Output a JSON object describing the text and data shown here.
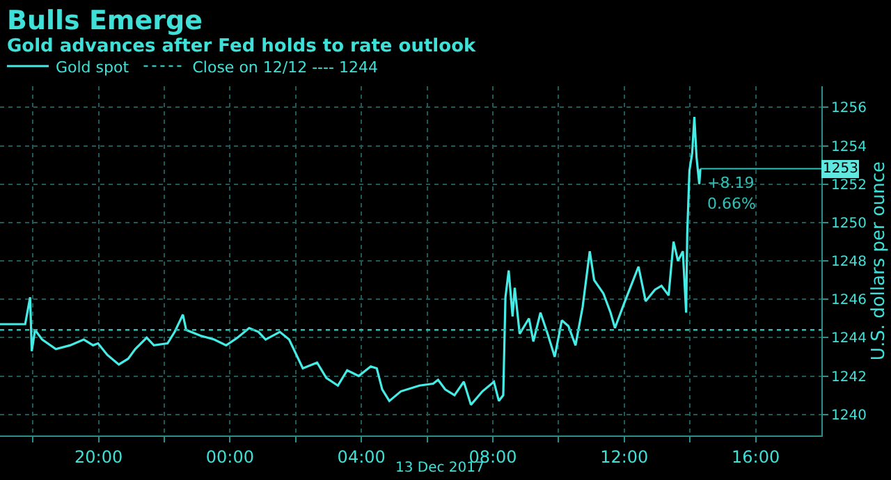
{
  "chart_data": {
    "type": "line",
    "title": "Bulls Emerge",
    "subtitle": "Gold advances after Fed holds to rate outlook",
    "ylabel": "U.S. dollars per ounce",
    "x": [
      "2017-12-12T17:00",
      "2017-12-12T17:46",
      "2017-12-12T17:55",
      "2017-12-12T17:58",
      "2017-12-12T18:04",
      "2017-12-12T18:17",
      "2017-12-12T18:42",
      "2017-12-12T19:08",
      "2017-12-12T19:33",
      "2017-12-12T19:50",
      "2017-12-12T19:59",
      "2017-12-12T20:16",
      "2017-12-12T20:37",
      "2017-12-12T20:54",
      "2017-12-12T21:07",
      "2017-12-12T21:28",
      "2017-12-12T21:41",
      "2017-12-12T22:06",
      "2017-12-12T22:19",
      "2017-12-12T22:34",
      "2017-12-12T22:40",
      "2017-12-12T23:06",
      "2017-12-12T23:31",
      "2017-12-12T23:53",
      "2017-12-13T00:14",
      "2017-12-13T00:35",
      "2017-12-13T00:52",
      "2017-12-13T01:05",
      "2017-12-13T01:31",
      "2017-12-13T01:48",
      "2017-12-13T02:13",
      "2017-12-13T02:39",
      "2017-12-13T02:56",
      "2017-12-13T03:17",
      "2017-12-13T03:34",
      "2017-12-13T03:55",
      "2017-12-13T04:17",
      "2017-12-13T04:28",
      "2017-12-13T04:38",
      "2017-12-13T04:51",
      "2017-12-13T05:12",
      "2017-12-13T05:46",
      "2017-12-13T06:11",
      "2017-12-13T06:20",
      "2017-12-13T06:33",
      "2017-12-13T06:50",
      "2017-12-13T07:07",
      "2017-12-13T07:20",
      "2017-12-13T07:41",
      "2017-12-13T08:02",
      "2017-12-13T08:11",
      "2017-12-13T08:19",
      "2017-12-13T08:23",
      "2017-12-13T08:29",
      "2017-12-13T08:36",
      "2017-12-13T08:40",
      "2017-12-13T08:49",
      "2017-12-13T09:06",
      "2017-12-13T09:14",
      "2017-12-13T09:27",
      "2017-12-13T09:40",
      "2017-12-13T09:53",
      "2017-12-13T10:06",
      "2017-12-13T10:18",
      "2017-12-13T10:31",
      "2017-12-13T10:44",
      "2017-12-13T10:57",
      "2017-12-13T11:05",
      "2017-12-13T11:22",
      "2017-12-13T11:35",
      "2017-12-13T11:43",
      "2017-12-13T12:00",
      "2017-12-13T12:26",
      "2017-12-13T12:39",
      "2017-12-13T12:56",
      "2017-12-13T13:08",
      "2017-12-13T13:21",
      "2017-12-13T13:30",
      "2017-12-13T13:38",
      "2017-12-13T13:47",
      "2017-12-13T13:53",
      "2017-12-13T13:55",
      "2017-12-13T13:59",
      "2017-12-13T14:04",
      "2017-12-13T14:08",
      "2017-12-13T14:12",
      "2017-12-13T14:17",
      "2017-12-13T14:19"
    ],
    "series": [
      {
        "name": "Gold spot",
        "color": "#45ece6",
        "values": [
          1244.7,
          1244.7,
          1246.1,
          1243.3,
          1244.4,
          1243.9,
          1243.4,
          1243.6,
          1243.9,
          1243.6,
          1243.7,
          1243.1,
          1242.6,
          1242.9,
          1243.4,
          1244.0,
          1243.6,
          1243.7,
          1244.3,
          1245.2,
          1244.4,
          1244.1,
          1243.9,
          1243.6,
          1244.0,
          1244.5,
          1244.3,
          1243.9,
          1244.3,
          1243.9,
          1242.4,
          1242.7,
          1241.9,
          1241.5,
          1242.3,
          1242.0,
          1242.5,
          1242.4,
          1241.3,
          1240.7,
          1241.2,
          1241.5,
          1241.6,
          1241.8,
          1241.3,
          1241.0,
          1241.7,
          1240.5,
          1241.2,
          1241.7,
          1240.7,
          1241.0,
          1246.1,
          1247.5,
          1245.1,
          1246.6,
          1244.2,
          1245.0,
          1243.8,
          1245.3,
          1244.2,
          1243.0,
          1244.9,
          1244.6,
          1243.6,
          1245.6,
          1248.5,
          1247.0,
          1246.3,
          1245.3,
          1244.5,
          1245.8,
          1247.7,
          1245.9,
          1246.5,
          1246.7,
          1246.2,
          1249.0,
          1248.0,
          1248.5,
          1245.3,
          1249.4,
          1252.7,
          1253.6,
          1255.5,
          1253.4,
          1252.0,
          1252.8
        ]
      }
    ],
    "xlim": [
      "2017-12-12T17:00",
      "2017-12-13T18:00"
    ],
    "xticks": [
      {
        "value": "2017-12-12T18:00",
        "label": null
      },
      {
        "value": "2017-12-12T20:00",
        "label": "20:00"
      },
      {
        "value": "2017-12-12T22:00",
        "label": null
      },
      {
        "value": "2017-12-13T00:00",
        "label": "00:00"
      },
      {
        "value": "2017-12-13T02:00",
        "label": null
      },
      {
        "value": "2017-12-13T04:00",
        "label": "04:00"
      },
      {
        "value": "2017-12-13T06:00",
        "label": null
      },
      {
        "value": "2017-12-13T08:00",
        "label": "08:00"
      },
      {
        "value": "2017-12-13T10:00",
        "label": null
      },
      {
        "value": "2017-12-13T12:00",
        "label": "12:00"
      },
      {
        "value": "2017-12-13T14:00",
        "label": null
      },
      {
        "value": "2017-12-13T16:00",
        "label": "16:00"
      }
    ],
    "ylim": [
      1238.9,
      1257.1
    ],
    "yticks": [
      1240,
      1242,
      1244,
      1246,
      1248,
      1250,
      1252,
      1254,
      1256
    ],
    "ref_lines": [
      {
        "axis": "y",
        "value": 1244.4,
        "label": "Close on 12/12 ---- 1244",
        "color": "#2fc1b8",
        "line_style": "dotted"
      }
    ],
    "annotations": [
      {
        "text": "1253",
        "x": "2017-12-13T14:19",
        "y": 1252.8
      },
      {
        "text": "+8.19",
        "x": "2017-12-13T14:19",
        "y": 1252.8
      },
      {
        "text": "0.66%",
        "x": "2017-12-13T14:19",
        "y": 1252.8
      },
      "13 Dec 2017"
    ],
    "grid": true,
    "legend": "top left",
    "marker": "none",
    "line_style": "solid"
  }
}
